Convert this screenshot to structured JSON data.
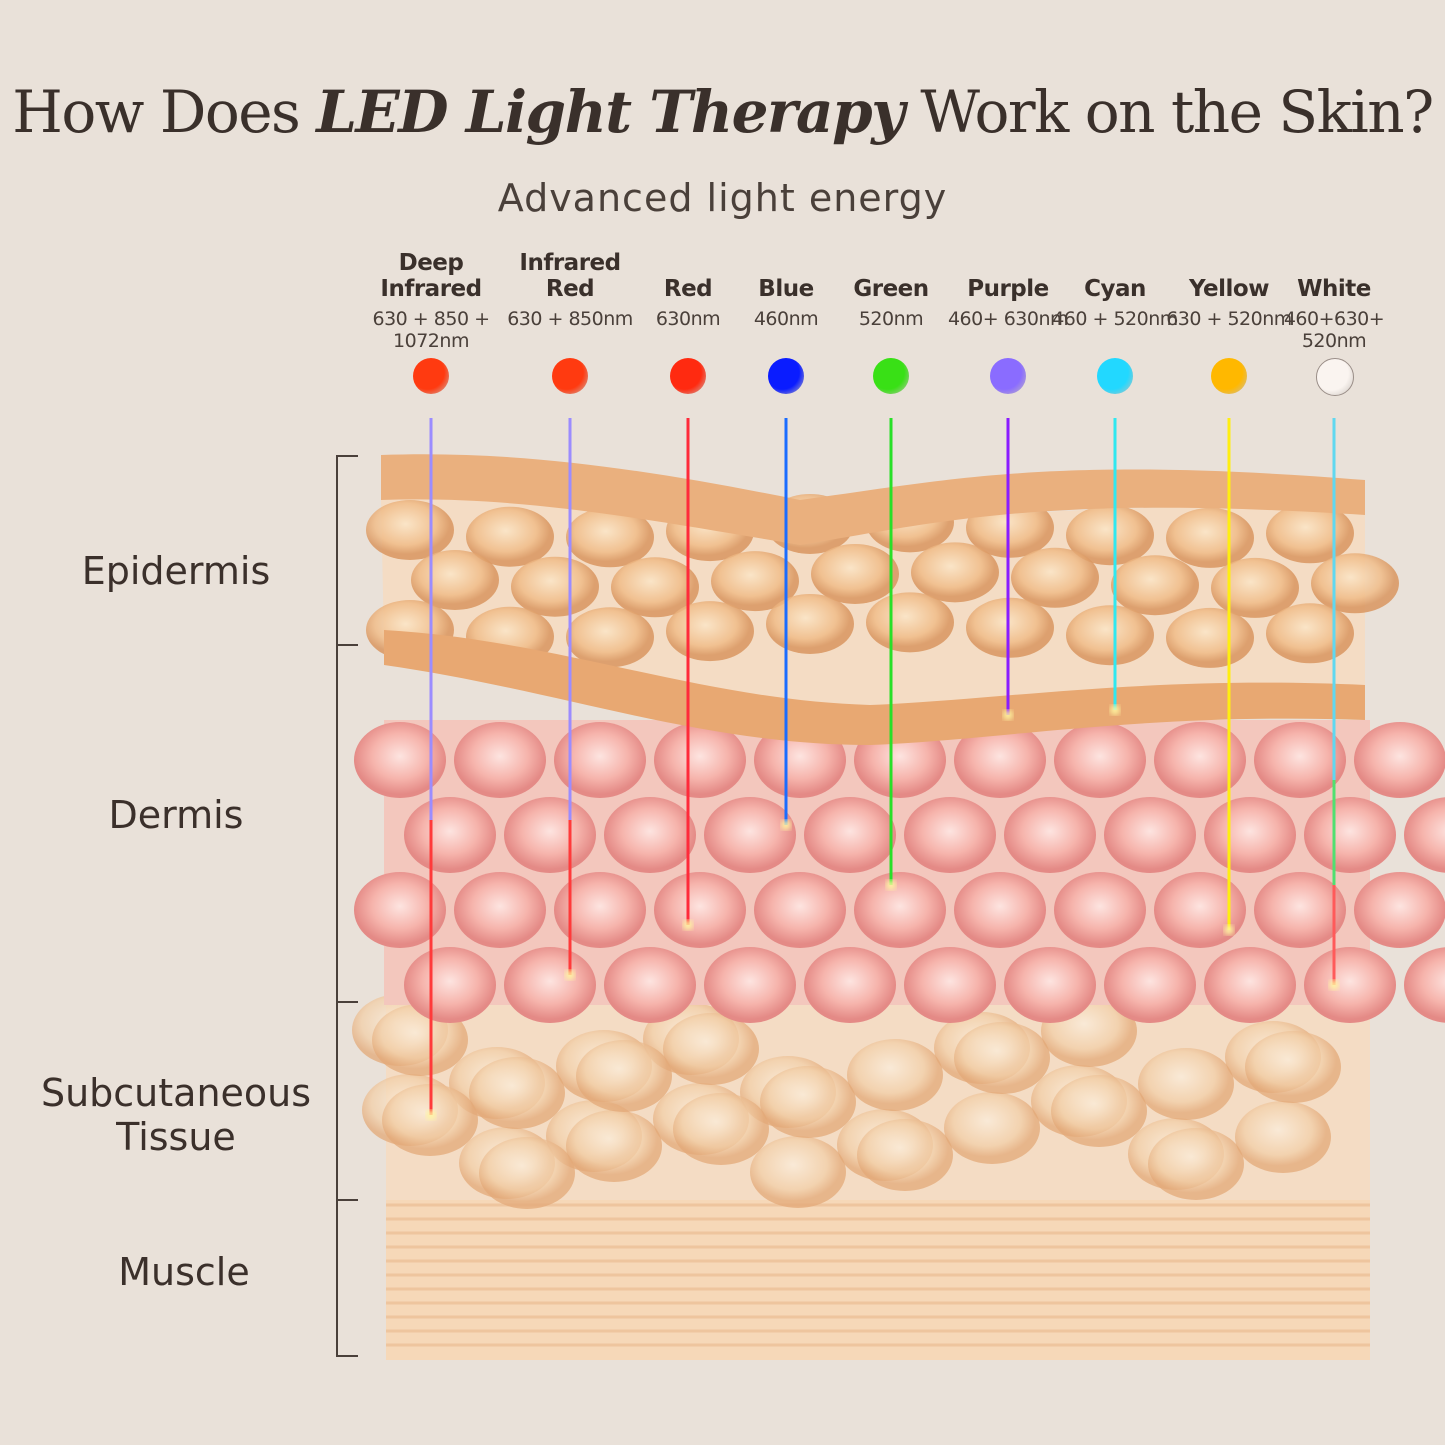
{
  "title": {
    "pre": "How Does ",
    "emph": "LED Light Therapy",
    "post": " Work on the Skin?"
  },
  "subtitle": "Advanced light energy",
  "lights": [
    {
      "name": "Deep Infrared",
      "nm": "630 + 850 + 1072nm",
      "color": "#ff3a10",
      "beam": [
        "#9b8cff",
        "#ff3a3a"
      ],
      "depth_layer": "Subcutaneous Tissue"
    },
    {
      "name": "Infrared Red",
      "nm": "630 + 850nm",
      "color": "#ff3a10",
      "beam": [
        "#9b8cff",
        "#ff3a3a"
      ],
      "depth_layer": "Dermis"
    },
    {
      "name": "Red",
      "nm": "630nm",
      "color": "#ff2a10",
      "beam": [
        "#ff2a3a"
      ],
      "depth_layer": "Dermis"
    },
    {
      "name": "Blue",
      "nm": "460nm",
      "color": "#0a1cff",
      "beam": [
        "#1a6cff"
      ],
      "depth_layer": "Dermis"
    },
    {
      "name": "Green",
      "nm": "520nm",
      "color": "#39e016",
      "beam": [
        "#28e028"
      ],
      "depth_layer": "Dermis"
    },
    {
      "name": "Purple",
      "nm": "460+ 630nm",
      "color": "#8a6cff",
      "beam": [
        "#8a1cff"
      ],
      "depth_layer": "Epidermis"
    },
    {
      "name": "Cyan",
      "nm": "460 + 520nm",
      "color": "#22d8ff",
      "beam": [
        "#30e8f0"
      ],
      "depth_layer": "Epidermis"
    },
    {
      "name": "Yellow",
      "nm": "630 + 520nm",
      "color": "#ffb800",
      "beam": [
        "#ffee10"
      ],
      "depth_layer": "Dermis"
    },
    {
      "name": "White",
      "nm": "460+630+ 520nm",
      "color": "#faf4f0",
      "beam": [
        "#60d8f0",
        "#50e070",
        "#ff5a5a"
      ],
      "depth_layer": "Dermis"
    }
  ],
  "layers": [
    {
      "label": "Epidermis"
    },
    {
      "label": "Dermis"
    },
    {
      "label": "Subcutaneous Tissue"
    },
    {
      "label": "Muscle"
    }
  ]
}
